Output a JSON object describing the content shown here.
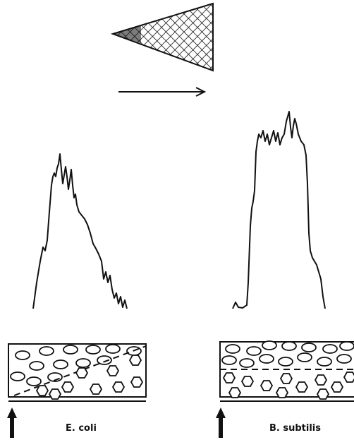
{
  "panels": [
    {
      "label": "E. coli"
    },
    {
      "label": "B. subtilis"
    }
  ]
}
